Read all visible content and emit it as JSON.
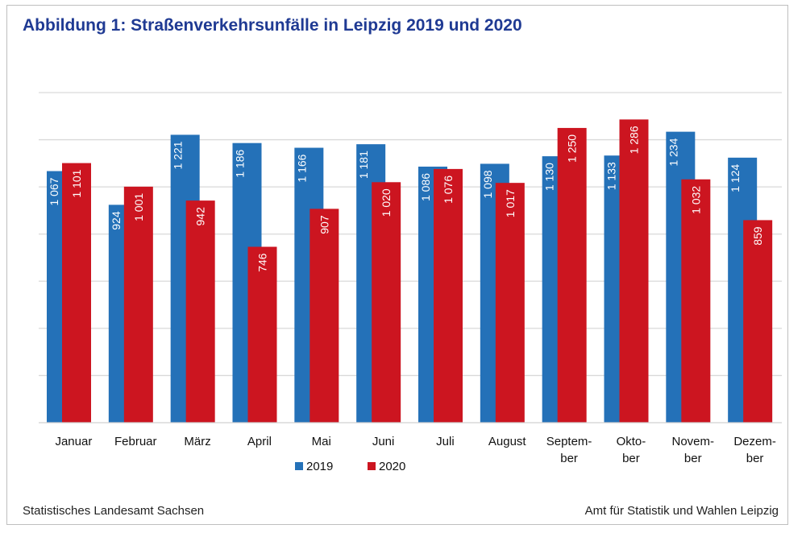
{
  "chart_data": {
    "type": "bar",
    "title": "Abbildung 1: Straßenverkehrsunfälle in Leipzig 2019 und 2020",
    "categories": [
      "Januar",
      "Februar",
      "März",
      "April",
      "Mai",
      "Juni",
      "Juli",
      "August",
      "Septem-\nber",
      "Okto-\nber",
      "Novem-\nber",
      "Dezem-\nber"
    ],
    "series": [
      {
        "name": "2019",
        "color": "#2471b8",
        "values": [
          1067,
          924,
          1221,
          1186,
          1166,
          1181,
          1086,
          1098,
          1130,
          1133,
          1234,
          1124
        ],
        "labels": [
          "1 067",
          "924",
          "1 221",
          "1 186",
          "1 166",
          "1 181",
          "1 086",
          "1 098",
          "1 130",
          "1 133",
          "1 234",
          "1 124"
        ]
      },
      {
        "name": "2020",
        "color": "#cc1520",
        "values": [
          1101,
          1001,
          942,
          746,
          907,
          1020,
          1076,
          1017,
          1250,
          1286,
          1032,
          859
        ],
        "labels": [
          "1 101",
          "1 001",
          "942",
          "746",
          "907",
          "1 020",
          "1 076",
          "1 017",
          "1 250",
          "1 286",
          "1 032",
          "859"
        ]
      }
    ],
    "ylim": [
      0,
      1400
    ],
    "grid_step": 200,
    "grid": true,
    "y_tick_labels_shown": false,
    "legend": "bottom",
    "xlabel": "",
    "ylabel": ""
  },
  "footer": {
    "left": "Statistisches Landesamt Sachsen",
    "right": "Amt für Statistik und Wahlen Leipzig"
  }
}
